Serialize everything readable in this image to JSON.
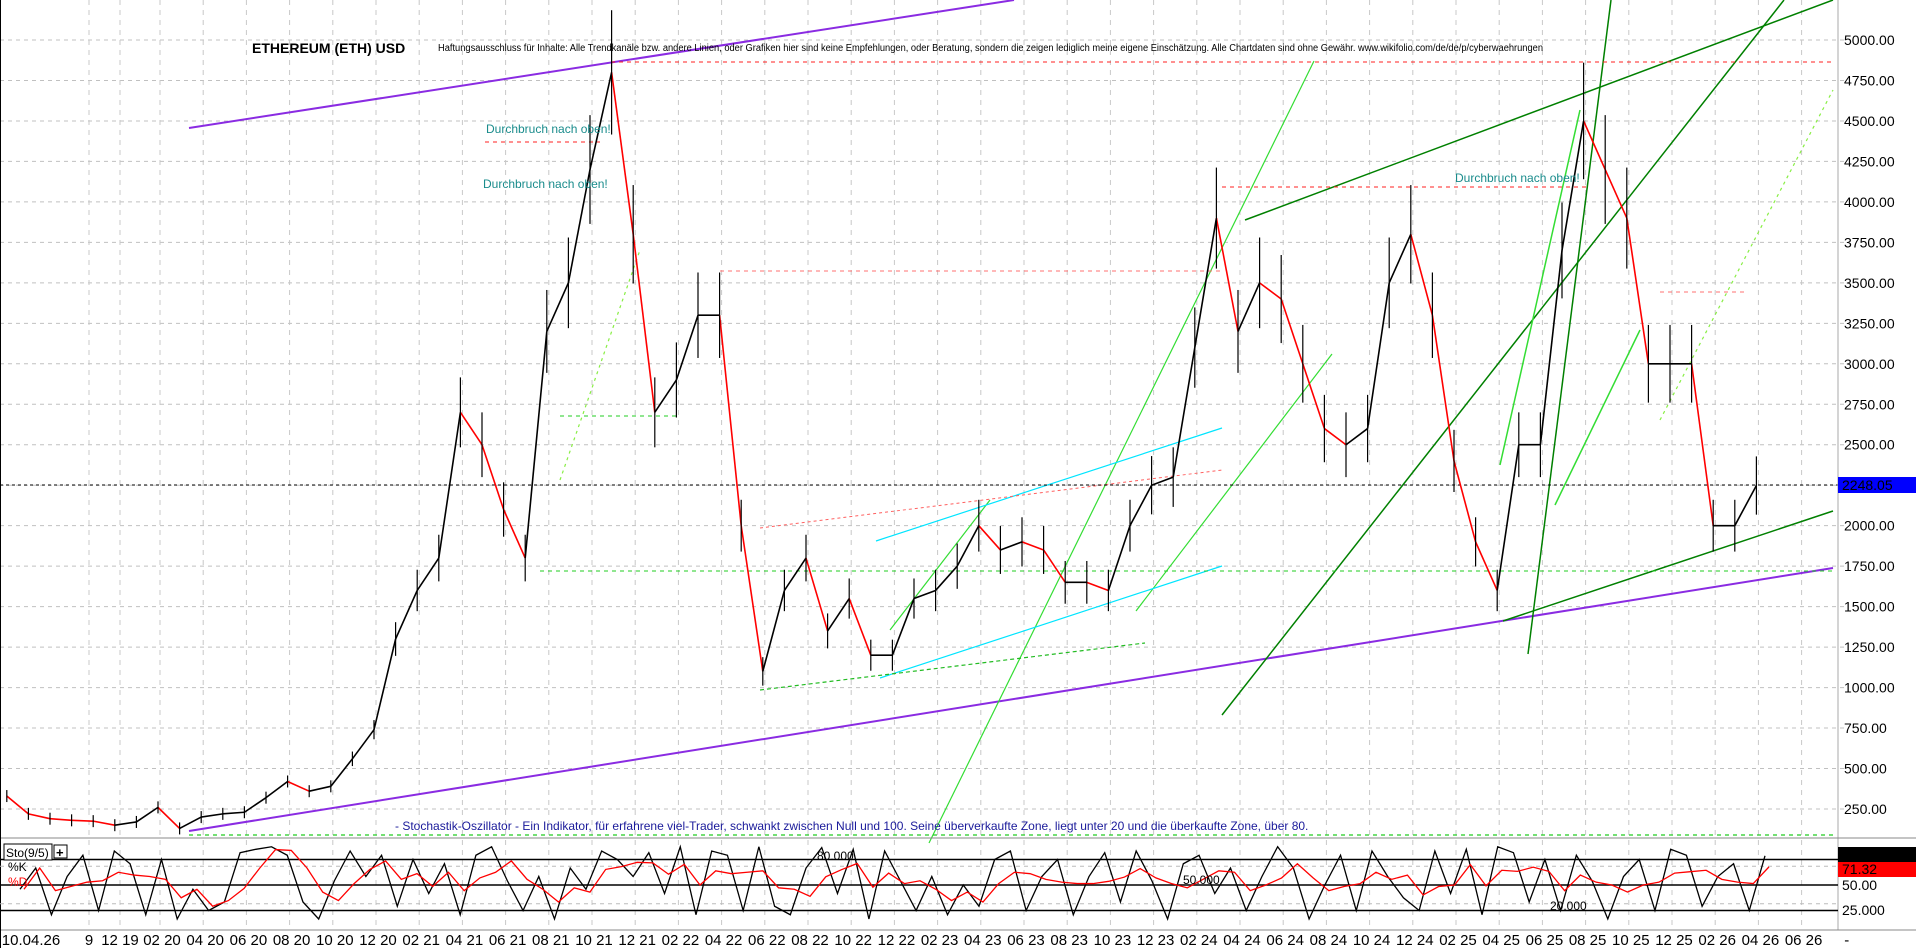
{
  "chart_data": {
    "type": "line",
    "title": "ETHEREUM (ETH) USD",
    "disclaimer": "Haftungsausschluss für Inhalte: Alle Trendkanäle bzw. andere Linien, oder Grafiken hier sind keine Empfehlungen, oder Beratung, sondern die zeigen lediglich meine eigene Einschätzung. Alle Chartdaten sind ohne Gewähr. www.wikifolio.com/de/de/p/cyberwaehrungen",
    "annotations": [
      "Durchbruch nach oben!",
      "Durchbruch nach oben!",
      "Durchbruch nach oben!"
    ],
    "indicator_note": "- Stochastik-Oszillator - Ein Indikator, für erfahrene viel-Trader, schwankt zwischen Null und 100. Seine überverkaufte Zone, liegt unter 20 und die überkaufte Zone, über 80.",
    "ylim": [
      250,
      5000
    ],
    "yticks": [
      "5000.00",
      "4750.00",
      "4500.00",
      "4250.00",
      "4000.00",
      "3750.00",
      "3500.00",
      "3250.00",
      "3000.00",
      "2750.00",
      "2500.00",
      "2250.00",
      "2000.00",
      "1750.00",
      "1500.00",
      "1250.00",
      "1000.00",
      "750.00",
      "500.00",
      "250.00"
    ],
    "last_price": "2248.05",
    "grid": true,
    "xticks": [
      "10.04.26",
      "9",
      "12 19",
      "02 20",
      "04 20",
      "06 20",
      "08 20",
      "10 20",
      "12 20",
      "02 21",
      "04 21",
      "06 21",
      "08 21",
      "10 21",
      "12 21",
      "02 22",
      "04 22",
      "06 22",
      "08 22",
      "10 22",
      "12 22",
      "02 23",
      "04 23",
      "06 23",
      "08 23",
      "10 23",
      "12 23",
      "02 24",
      "04 24",
      "06 24",
      "08 24",
      "10 24",
      "12 24",
      "02 25",
      "04 25",
      "06 25",
      "08 25",
      "10 25",
      "12 25",
      "02 26",
      "04 26",
      "06 26",
      "-"
    ],
    "series": [
      {
        "x": [
          "2019-07",
          "2019-08",
          "2019-09",
          "2019-10",
          "2019-11",
          "2019-12",
          "2020-01",
          "2020-02",
          "2020-03",
          "2020-04",
          "2020-05",
          "2020-06",
          "2020-07",
          "2020-08",
          "2020-09",
          "2020-10",
          "2020-11",
          "2020-12",
          "2021-01",
          "2021-02",
          "2021-03",
          "2021-04",
          "2021-05",
          "2021-06",
          "2021-07",
          "2021-08",
          "2021-09",
          "2021-10",
          "2021-11",
          "2021-12",
          "2022-01",
          "2022-02",
          "2022-03",
          "2022-04",
          "2022-05",
          "2022-06",
          "2022-07",
          "2022-08",
          "2022-09",
          "2022-10",
          "2022-11",
          "2022-12",
          "2023-01",
          "2023-02",
          "2023-03",
          "2023-04",
          "2023-05",
          "2023-06",
          "2023-07",
          "2023-08",
          "2023-09",
          "2023-10",
          "2023-11",
          "2023-12",
          "2024-01",
          "2024-02",
          "2024-03",
          "2024-04",
          "2024-05",
          "2024-06",
          "2024-07",
          "2024-08",
          "2024-09",
          "2024-10",
          "2024-11",
          "2024-12",
          "2025-01",
          "2025-02",
          "2025-03",
          "2025-04",
          "2025-05",
          "2025-06",
          "2025-07",
          "2025-08",
          "2025-09",
          "2025-10",
          "2025-11",
          "2025-12",
          "2026-01",
          "2026-02",
          "2026-03",
          "2026-04"
        ],
        "values": [
          330,
          220,
          190,
          180,
          175,
          150,
          170,
          260,
          130,
          200,
          220,
          230,
          320,
          420,
          360,
          390,
          560,
          740,
          1300,
          1600,
          1800,
          2700,
          2500,
          2100,
          1800,
          3200,
          3500,
          4200,
          4800,
          3800,
          2700,
          2900,
          3300,
          3300,
          2000,
          1100,
          1600,
          1800,
          1350,
          1550,
          1200,
          1200,
          1550,
          1600,
          1750,
          2000,
          1850,
          1900,
          1850,
          1650,
          1650,
          1600,
          2000,
          2250,
          2300,
          3100,
          3900,
          3200,
          3500,
          3400,
          3000,
          2600,
          2500,
          2600,
          3500,
          3800,
          3300,
          2400,
          1900,
          1600,
          2500,
          2500,
          3700,
          4500,
          4200,
          3900,
          3000,
          3000,
          3000,
          2000,
          2000,
          2248.05
        ]
      }
    ],
    "levels": {
      "top": 4850,
      "mid": 4100,
      "support": 1750
    },
    "stochastic": {
      "label": "Sto(9/5)",
      "k_label": "%K",
      "d_label": "%D",
      "k_value": "84.34",
      "d_value": "71.32",
      "k_color": "#000000",
      "d_color": "#ff0000",
      "level_labels": [
        "80.000",
        "50.000",
        "20.000"
      ],
      "axis_labels": [
        "50.00",
        "25.000"
      ],
      "levels": [
        80,
        50,
        20
      ],
      "k": [
        45,
        70,
        15,
        60,
        85,
        20,
        90,
        75,
        15,
        80,
        10,
        45,
        20,
        30,
        88,
        92,
        95,
        85,
        30,
        10,
        55,
        90,
        60,
        85,
        25,
        80,
        40,
        75,
        15,
        85,
        95,
        55,
        20,
        60,
        10,
        70,
        45,
        90,
        80,
        60,
        88,
        40,
        95,
        15,
        90,
        85,
        20,
        95,
        25,
        15,
        70,
        94,
        40,
        92,
        10,
        90,
        55,
        20,
        60,
        15,
        50,
        25,
        80,
        90,
        20,
        60,
        80,
        15,
        60,
        88,
        30,
        90,
        55,
        10,
        75,
        85,
        40,
        70,
        20,
        60,
        95,
        70,
        10,
        50,
        85,
        20,
        90,
        60,
        35,
        20,
        90,
        40,
        92,
        15,
        95,
        88,
        30,
        80,
        20,
        85,
        55,
        10,
        60,
        80,
        20,
        92,
        85,
        25,
        60,
        75,
        20,
        84.34
      ],
      "ylim": [
        0,
        100
      ]
    },
    "colors": {
      "up": "#000000",
      "down": "#ff0000",
      "channel": "#8a2be2",
      "trend_dark": "#008000",
      "trend_light": "#33dd33",
      "cyan": "#00e5ff",
      "resistance": "#ff2020",
      "annotation": "#1a8c8c",
      "price_tag": "#0000ff"
    }
  }
}
